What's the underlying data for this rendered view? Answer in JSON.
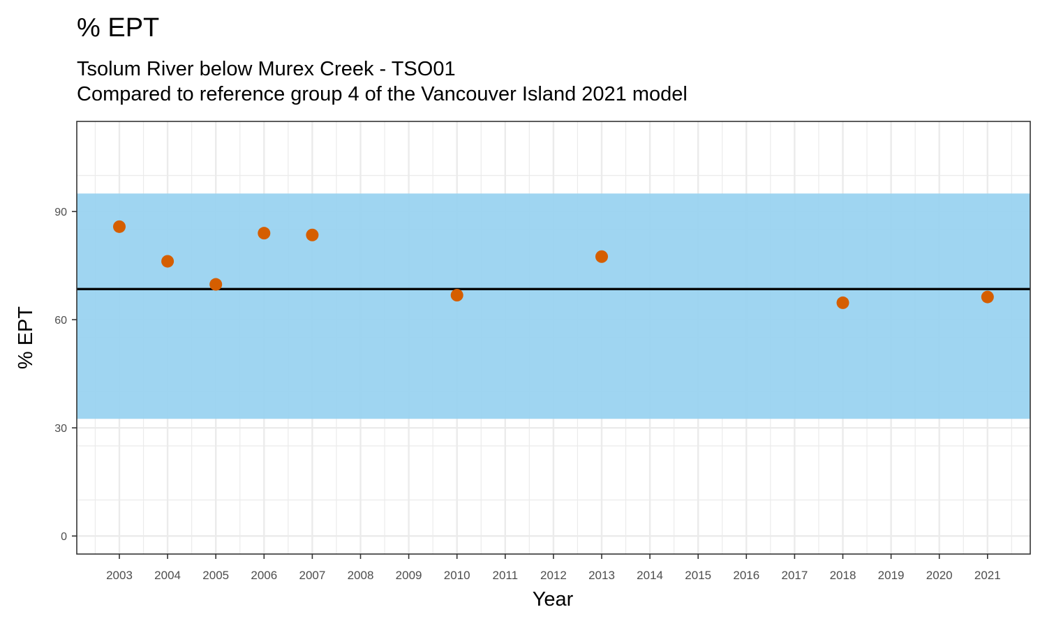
{
  "colors": {
    "band": "#9ad3f0",
    "point": "#d55e00",
    "reference_line": "#000000",
    "grid": "#ebebeb",
    "panel_border": "#333333",
    "axis_text": "#4d4d4d"
  },
  "chart_data": {
    "type": "scatter",
    "title": "% EPT",
    "subtitle_lines": [
      "Tsolum River below Murex Creek - TSO01",
      "Compared to reference group 4 of the Vancouver Island 2021 model"
    ],
    "xlabel": "Year",
    "ylabel": "% EPT",
    "x_categories": [
      "2003",
      "2004",
      "2005",
      "2006",
      "2007",
      "2008",
      "2009",
      "2010",
      "2011",
      "2012",
      "2013",
      "2014",
      "2015",
      "2016",
      "2017",
      "2018",
      "2019",
      "2020",
      "2021"
    ],
    "ylim": [
      -5,
      115
    ],
    "yticks": [
      0,
      30,
      60,
      90
    ],
    "grid": true,
    "reference_band": {
      "ymin": 32.5,
      "ymax": 95
    },
    "reference_line": {
      "y": 68.5
    },
    "points": [
      {
        "x": "2003",
        "y": 85.8
      },
      {
        "x": "2004",
        "y": 76.2
      },
      {
        "x": "2005",
        "y": 69.8
      },
      {
        "x": "2006",
        "y": 84.0
      },
      {
        "x": "2007",
        "y": 83.5
      },
      {
        "x": "2010",
        "y": 66.8
      },
      {
        "x": "2013",
        "y": 77.5
      },
      {
        "x": "2018",
        "y": 64.7
      },
      {
        "x": "2021",
        "y": 66.3
      }
    ]
  }
}
